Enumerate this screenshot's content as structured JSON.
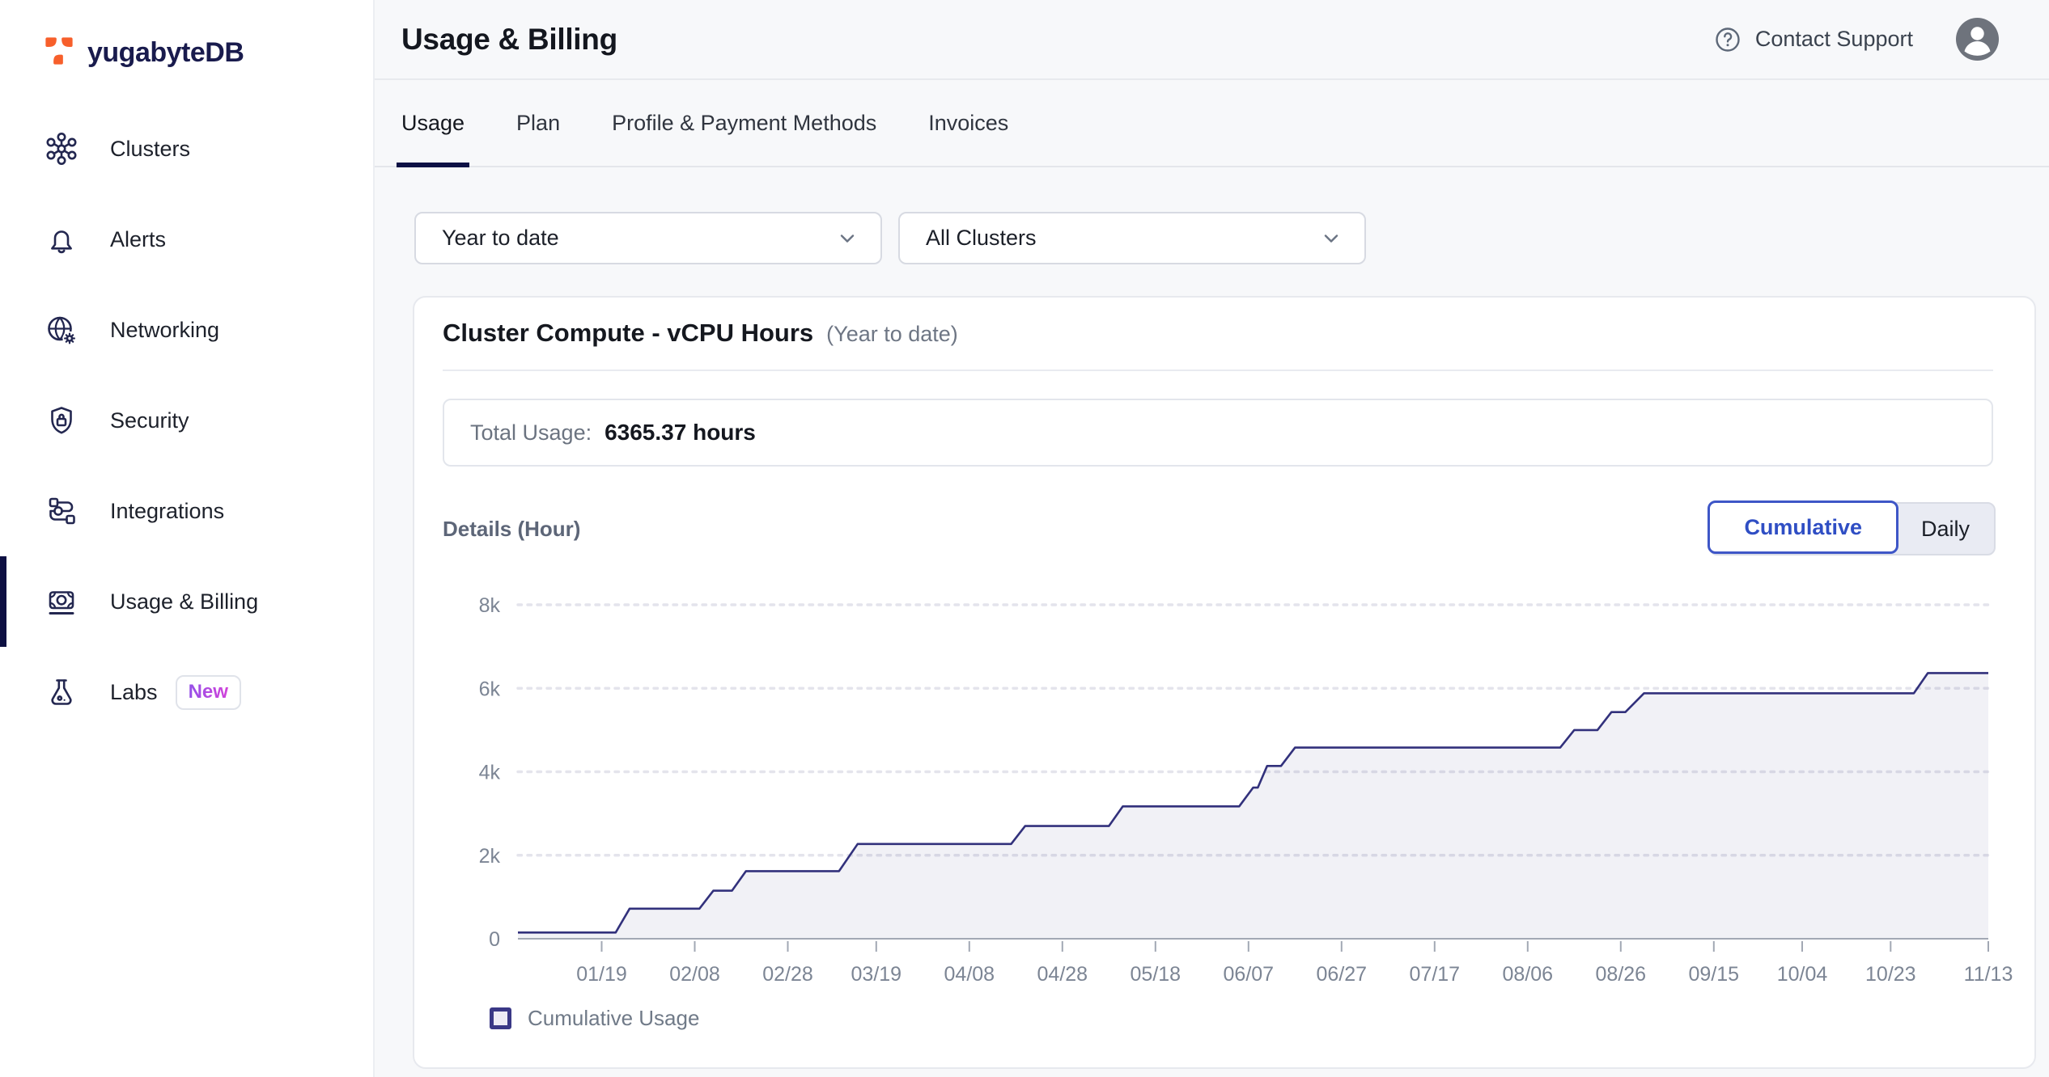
{
  "brand": {
    "name": "yugabyteDB"
  },
  "sidebar": {
    "items": [
      {
        "label": "Clusters",
        "icon": "clusters-icon",
        "active": false
      },
      {
        "label": "Alerts",
        "icon": "bell-icon",
        "active": false
      },
      {
        "label": "Networking",
        "icon": "globe-gear-icon",
        "active": false
      },
      {
        "label": "Security",
        "icon": "shield-lock-icon",
        "active": false
      },
      {
        "label": "Integrations",
        "icon": "integrations-icon",
        "active": false
      },
      {
        "label": "Usage & Billing",
        "icon": "banknote-icon",
        "active": true
      },
      {
        "label": "Labs",
        "icon": "flask-icon",
        "active": false,
        "badge": "New"
      }
    ]
  },
  "header": {
    "title": "Usage & Billing",
    "support_label": "Contact Support"
  },
  "tabs": [
    {
      "label": "Usage",
      "active": true
    },
    {
      "label": "Plan",
      "active": false
    },
    {
      "label": "Profile & Payment Methods",
      "active": false
    },
    {
      "label": "Invoices",
      "active": false
    }
  ],
  "filters": {
    "time_range": "Year to date",
    "cluster": "All Clusters"
  },
  "usage_card": {
    "title": "Cluster Compute - vCPU Hours",
    "subtitle": "(Year to date)",
    "total_label": "Total Usage:",
    "total_value": "6365.37 hours",
    "details_label": "Details (Hour)",
    "toggle": [
      {
        "label": "Cumulative",
        "active": true
      },
      {
        "label": "Daily",
        "active": false
      }
    ],
    "legend_label": "Cumulative Usage"
  },
  "chart_data": {
    "type": "area",
    "title": "Cluster Compute - vCPU Hours (Year to date)",
    "x_range": [
      "01/01",
      "11/13"
    ],
    "x_tick_labels": [
      "01/19",
      "02/08",
      "02/28",
      "03/19",
      "04/08",
      "04/28",
      "05/18",
      "06/07",
      "06/27",
      "07/17",
      "08/06",
      "08/26",
      "09/15",
      "10/04",
      "10/23",
      "11/13"
    ],
    "ylim": [
      0,
      8000
    ],
    "y_tick_values": [
      0,
      2000,
      4000,
      6000,
      8000
    ],
    "y_tick_labels": [
      "0",
      "2k",
      "4k",
      "6k",
      "8k"
    ],
    "grid": "horizontal-dotted",
    "legend_position": "bottom-left",
    "series": [
      {
        "name": "Cumulative Usage",
        "points": [
          [
            "01/01",
            150
          ],
          [
            "01/22",
            150
          ],
          [
            "01/25",
            720
          ],
          [
            "02/09",
            720
          ],
          [
            "02/12",
            1150
          ],
          [
            "02/16",
            1150
          ],
          [
            "02/19",
            1620
          ],
          [
            "03/11",
            1620
          ],
          [
            "03/15",
            2270
          ],
          [
            "04/17",
            2270
          ],
          [
            "04/20",
            2700
          ],
          [
            "05/08",
            2700
          ],
          [
            "05/11",
            3170
          ],
          [
            "06/05",
            3170
          ],
          [
            "06/08",
            3620
          ],
          [
            "06/09",
            3620
          ],
          [
            "06/11",
            4140
          ],
          [
            "06/14",
            4140
          ],
          [
            "06/17",
            4580
          ],
          [
            "08/13",
            4580
          ],
          [
            "08/16",
            5000
          ],
          [
            "08/21",
            5000
          ],
          [
            "08/24",
            5430
          ],
          [
            "08/27",
            5430
          ],
          [
            "08/31",
            5880
          ],
          [
            "10/28",
            5880
          ],
          [
            "10/31",
            6365.37
          ],
          [
            "11/13",
            6365.37
          ]
        ]
      }
    ]
  },
  "colors": {
    "logo_orange": "#f75f2b",
    "brand_navy": "#191b4d",
    "active_indicator": "#0d1042",
    "line": "#32317c",
    "area_fill": "rgba(50,49,124,0.065)",
    "grid_dot": "#e4e4ec",
    "axis": "#a2a8b4",
    "axis_label": "#7c8594",
    "toggle_blue": "#2f4ec4"
  }
}
